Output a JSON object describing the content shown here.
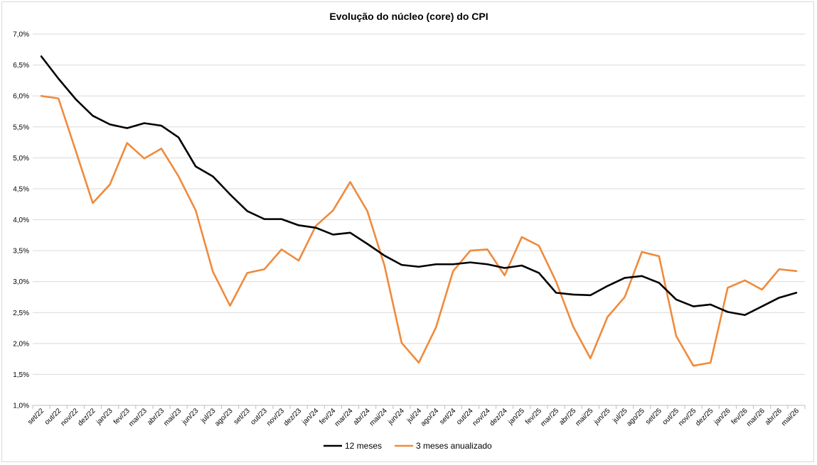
{
  "chart_data": {
    "type": "line",
    "title": "Evolução do núcleo (core) do CPI",
    "xlabel": "",
    "ylabel": "",
    "ylim": [
      1.0,
      7.0
    ],
    "y_ticks": [
      "1,0%",
      "1,5%",
      "2,0%",
      "2,5%",
      "3,0%",
      "3,5%",
      "4,0%",
      "4,5%",
      "5,0%",
      "5,5%",
      "6,0%",
      "6,5%",
      "7,0%"
    ],
    "grid": true,
    "legend_position": "bottom",
    "categories": [
      "set/22",
      "out/22",
      "nov/22",
      "dez/22",
      "jan/23",
      "fev/23",
      "mar/23",
      "abr/23",
      "mai/23",
      "jun/23",
      "jul/23",
      "ago/23",
      "set/23",
      "out/23",
      "nov/23",
      "dez/23",
      "jan/24",
      "fev/24",
      "mar/24",
      "abr/24",
      "mai/24",
      "jun/24",
      "jul/24",
      "ago/24",
      "set/24",
      "out/24",
      "nov/24",
      "dez/24",
      "jan/25",
      "fev/25",
      "mar/25",
      "abr/25",
      "mai/25",
      "jun/25",
      "jul/25",
      "ago/25",
      "set/25",
      "out/25",
      "nov/25",
      "dez/25",
      "jan/26",
      "fev/26",
      "mar/26",
      "abr/26",
      "mai/26"
    ],
    "series": [
      {
        "name": "12 meses",
        "color": "#000000",
        "values": [
          6.64,
          6.28,
          5.95,
          5.68,
          5.54,
          5.48,
          5.56,
          5.52,
          5.33,
          4.86,
          4.7,
          4.41,
          4.14,
          4.01,
          4.01,
          3.91,
          3.87,
          3.76,
          3.79,
          3.61,
          3.42,
          3.27,
          3.24,
          3.28,
          3.28,
          3.31,
          3.28,
          3.22,
          3.26,
          3.14,
          2.82,
          2.79,
          2.78,
          2.93,
          3.06,
          3.09,
          2.98,
          2.71,
          2.6,
          2.63,
          2.51,
          2.46,
          2.6,
          2.74,
          2.82
        ]
      },
      {
        "name": "3 meses anualizado",
        "color": "#f08a3c",
        "values": [
          6.0,
          5.96,
          5.12,
          4.27,
          4.57,
          5.24,
          4.99,
          5.15,
          4.7,
          4.15,
          3.16,
          2.61,
          3.14,
          3.2,
          3.52,
          3.34,
          3.9,
          4.15,
          4.61,
          4.14,
          3.26,
          2.01,
          1.69,
          2.26,
          3.17,
          3.5,
          3.52,
          3.1,
          3.72,
          3.58,
          3.0,
          2.27,
          1.76,
          2.43,
          2.75,
          3.48,
          3.41,
          2.12,
          1.64,
          1.69,
          2.9,
          3.02,
          2.87,
          3.2,
          3.17
        ]
      }
    ]
  }
}
